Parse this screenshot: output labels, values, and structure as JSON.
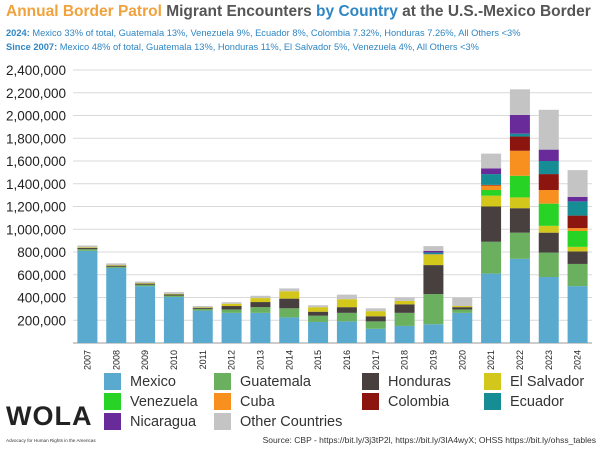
{
  "header": {
    "title_parts": [
      "Annual",
      " Border Patrol",
      " Migrant Encounters",
      " by Country",
      " at the U.S.-Mexico Border"
    ],
    "sub1_bold": "2024:",
    "sub1_text": " Mexico 33% of total, Guatemala 13%, Venezuela 9%, Ecuador 8%, Colombia 7.32%, Honduras 7.26%, All Others <3%",
    "sub2_bold": "Since 2007:",
    "sub2_text": " Mexico 48% of total, Guatemala 13%, Honduras 11%, El Salvador 5%, Venezuela 4%, All Others <3%"
  },
  "footer": {
    "logo_text": "WOLA",
    "logo_tagline": "Advocacy for Human Rights in the Americas",
    "source": "Source: CBP - https://bit.ly/3j3tP2l, https://bit.ly/3IA4wyX; OHSS https://bit.ly/ohss_tables"
  },
  "chart_data": {
    "type": "bar",
    "stacked": true,
    "categories": [
      "2007",
      "2008",
      "2009",
      "2010",
      "2011",
      "2012",
      "2013",
      "2014",
      "2015",
      "2016",
      "2017",
      "2018",
      "2019",
      "2020",
      "2021",
      "2022",
      "2023",
      "2024"
    ],
    "ylim": [
      0,
      2400000
    ],
    "yticks": [
      200000,
      400000,
      600000,
      800000,
      1000000,
      1200000,
      1400000,
      1600000,
      1800000,
      2000000,
      2200000,
      2400000
    ],
    "ytick_labels": [
      "200,000",
      "400,000",
      "600,000",
      "800,000",
      "1,000,000",
      "1,200,000",
      "1,400,000",
      "1,600,000",
      "1,800,000",
      "2,000,000",
      "2,200,000",
      "2,400,000"
    ],
    "grid": true,
    "legend_position": "bottom",
    "series": [
      {
        "name": "Mexico",
        "color": "#5aa9cf",
        "values": [
          810000,
          660000,
          500000,
          405000,
          285000,
          265000,
          265000,
          225000,
          185000,
          190000,
          125000,
          150000,
          165000,
          265000,
          610000,
          740000,
          580000,
          500000
        ]
      },
      {
        "name": "Guatemala",
        "color": "#6ab05e",
        "values": [
          15000,
          10000,
          12000,
          12000,
          15000,
          30000,
          50000,
          80000,
          55000,
          75000,
          65000,
          115000,
          265000,
          30000,
          280000,
          230000,
          215000,
          195000
        ]
      },
      {
        "name": "Honduras",
        "color": "#48403f",
        "values": [
          10000,
          10000,
          10000,
          10000,
          10000,
          30000,
          45000,
          85000,
          35000,
          50000,
          45000,
          75000,
          255000,
          20000,
          310000,
          215000,
          175000,
          110000
        ]
      },
      {
        "name": "El Salvador",
        "color": "#d4c71b",
        "values": [
          5000,
          5000,
          5000,
          5000,
          5000,
          20000,
          35000,
          65000,
          40000,
          70000,
          45000,
          30000,
          90000,
          10000,
          95000,
          95000,
          60000,
          40000
        ]
      },
      {
        "name": "Venezuela",
        "color": "#27d426",
        "values": [
          0,
          0,
          0,
          0,
          0,
          0,
          0,
          0,
          0,
          0,
          0,
          0,
          0,
          0,
          50000,
          190000,
          195000,
          140000
        ]
      },
      {
        "name": "Cuba",
        "color": "#f7901e",
        "values": [
          0,
          0,
          0,
          0,
          0,
          0,
          0,
          0,
          0,
          0,
          0,
          0,
          5000,
          0,
          40000,
          220000,
          120000,
          25000
        ]
      },
      {
        "name": "Colombia",
        "color": "#8c1510",
        "values": [
          0,
          0,
          0,
          0,
          0,
          0,
          0,
          0,
          0,
          0,
          0,
          0,
          0,
          0,
          5000,
          125000,
          140000,
          110000
        ]
      },
      {
        "name": "Ecuador",
        "color": "#168c94",
        "values": [
          0,
          0,
          0,
          0,
          0,
          0,
          0,
          0,
          0,
          0,
          0,
          0,
          15000,
          0,
          95000,
          25000,
          115000,
          125000
        ]
      },
      {
        "name": "Nicaragua",
        "color": "#6a2b9a",
        "values": [
          0,
          0,
          0,
          0,
          0,
          0,
          0,
          0,
          0,
          0,
          0,
          0,
          15000,
          0,
          50000,
          165000,
          100000,
          40000
        ]
      },
      {
        "name": "Other Countries",
        "color": "#c4c4c4",
        "values": [
          17000,
          15000,
          13000,
          15000,
          10000,
          13000,
          20000,
          25000,
          17000,
          40000,
          25000,
          30000,
          42000,
          75000,
          130000,
          225000,
          350000,
          235000
        ]
      }
    ]
  }
}
